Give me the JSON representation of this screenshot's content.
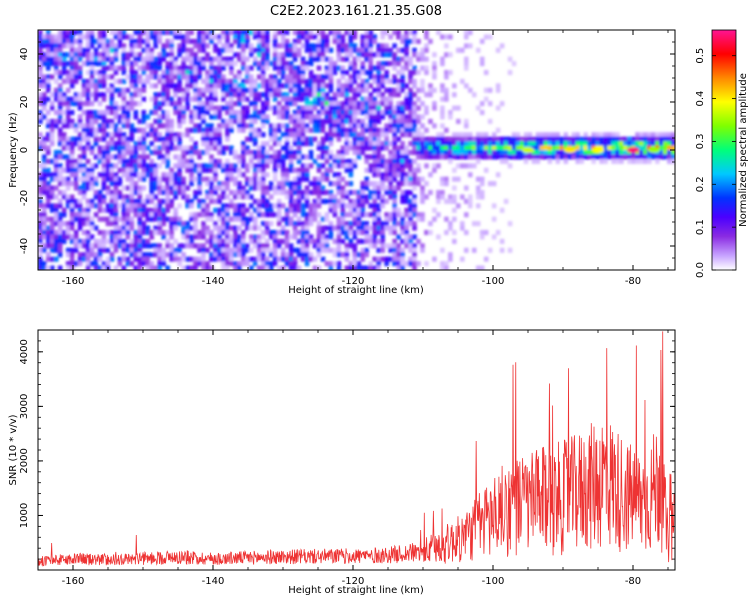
{
  "title": "C2E2.2023.161.21.35.G08",
  "chart_data": [
    {
      "type": "heatmap",
      "xlabel": "Height of straight line (km)",
      "ylabel": "Frequency (Hz)",
      "xlim": [
        -165,
        -74
      ],
      "ylim": [
        -50,
        50
      ],
      "xticks": [
        -160,
        -140,
        -120,
        -100,
        -80
      ],
      "yticks": [
        -40,
        -20,
        0,
        20,
        40
      ],
      "colorbar": {
        "label": "Normalized spectral amplitude",
        "range": [
          0.0,
          0.56
        ],
        "ticks": [
          0.0,
          0.1,
          0.2,
          0.3,
          0.4,
          0.5
        ],
        "colormap": [
          "#ffffff",
          "#c7a3ff",
          "#8a2be2",
          "#4b00ff",
          "#0033ff",
          "#00c8ff",
          "#00ff7a",
          "#7fff00",
          "#ffff00",
          "#ff8800",
          "#ff0000",
          "#ff1493"
        ]
      },
      "features": {
        "noise_region_km": [
          -165,
          -110
        ],
        "signal_band_center_hz": 0,
        "signal_band_width_hz": 12,
        "signal_onset_km": -111,
        "peak_amplitude": 0.56,
        "peak_location_km": -80
      }
    },
    {
      "type": "line",
      "xlabel": "Height of straight line (km)",
      "ylabel": "SNR (10 * v/v)",
      "xlim": [
        -165,
        -74
      ],
      "ylim": [
        0,
        4400
      ],
      "xticks": [
        -160,
        -140,
        -120,
        -100,
        -80
      ],
      "yticks": [
        1000,
        2000,
        3000,
        4000
      ],
      "series": [
        {
          "name": "SNR",
          "color": "#ee3333",
          "x": [
            -165,
            -160,
            -155,
            -150,
            -145,
            -140,
            -135,
            -130,
            -125,
            -120,
            -115,
            -110,
            -107,
            -104,
            -101,
            -98,
            -95,
            -92,
            -89,
            -86,
            -84,
            -82,
            -80,
            -78,
            -76,
            -75,
            -74
          ],
          "values": [
            200,
            250,
            240,
            260,
            300,
            260,
            280,
            300,
            310,
            320,
            340,
            420,
            600,
            800,
            1200,
            1500,
            1600,
            1700,
            1800,
            2000,
            2200,
            1900,
            1700,
            1600,
            2200,
            700,
            1100
          ]
        }
      ]
    }
  ]
}
